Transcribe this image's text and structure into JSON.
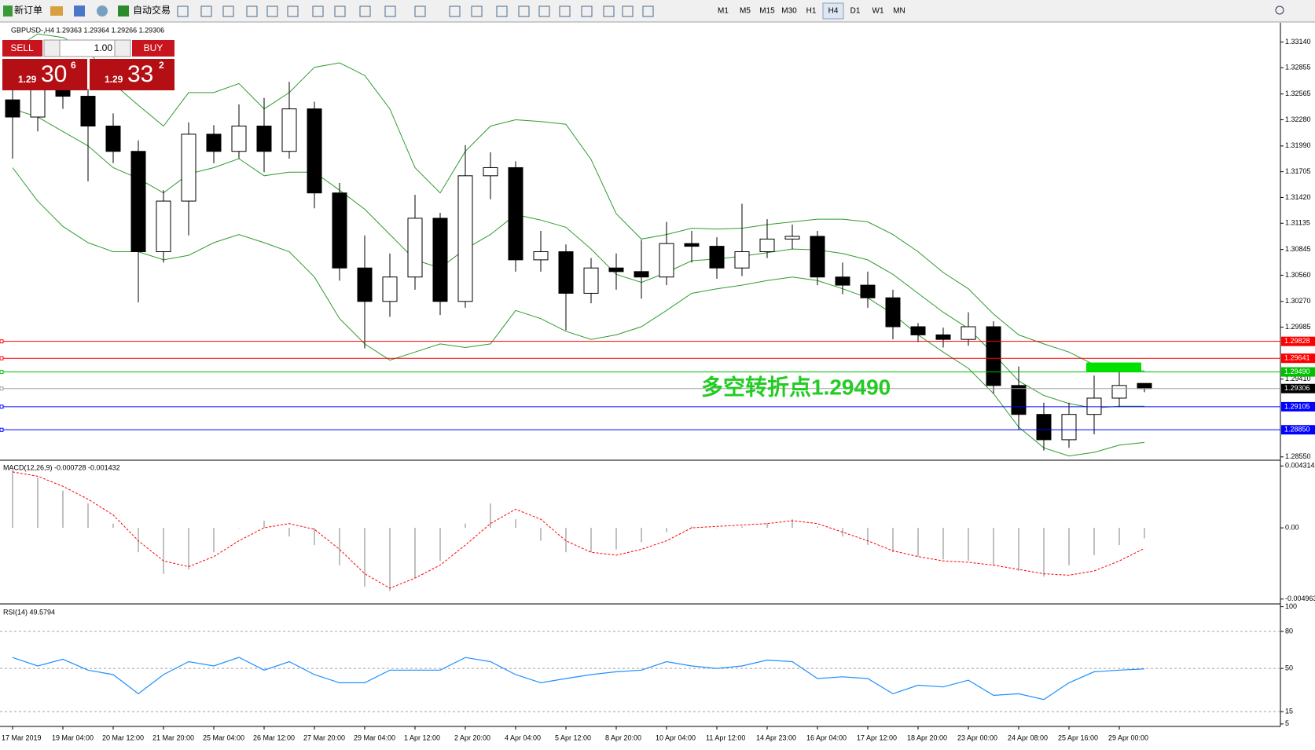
{
  "toolbar": {
    "buttons": [
      "新订单",
      "自动交易"
    ],
    "periods": [
      "M1",
      "M5",
      "M15",
      "M30",
      "H1",
      "H4",
      "D1",
      "W1",
      "MN"
    ],
    "active_period": 5
  },
  "trade": {
    "sell": "SELL",
    "buy": "BUY",
    "lots": "1.00",
    "bid": [
      "1.29",
      "30",
      "6"
    ],
    "ask": [
      "1.29",
      "33",
      "2"
    ]
  },
  "chart_data": [
    {
      "type": "candlestick",
      "title": "GBPUSD-,H4 1.29363 1.29364 1.29266 1.29306",
      "categories": [
        "17 Mar 2019",
        null,
        "19 Mar 04:00",
        null,
        "20 Mar 12:00",
        null,
        "21 Mar 20:00",
        null,
        "25 Mar 04:00",
        null,
        "26 Mar 12:00",
        null,
        "27 Mar 20:00",
        null,
        "29 Mar 04:00",
        null,
        "1 Apr 12:00",
        null,
        "2 Apr 20:00",
        null,
        "4 Apr 04:00",
        null,
        "5 Apr 12:00",
        null,
        "8 Apr 20:00",
        null,
        "10 Apr 04:00",
        null,
        "11 Apr 12:00",
        null,
        "14 Apr 23:00",
        null,
        "16 Apr 04:00",
        null,
        "17 Apr 12:00",
        null,
        "18 Apr 20:00",
        null,
        "23 Apr 00:00",
        null,
        "24 Apr 08:00",
        null,
        "25 Apr 16:00",
        null,
        "29 Apr 00:00",
        null
      ],
      "open": [
        1.325,
        1.3231,
        1.3268,
        1.3254,
        1.3221,
        1.3193,
        1.3082,
        1.3138,
        1.3212,
        1.3193,
        1.3221,
        1.3193,
        1.324,
        1.3147,
        1.3064,
        1.3027,
        1.3054,
        1.3119,
        1.3027,
        1.3166,
        1.3175,
        1.3073,
        1.3082,
        1.3036,
        1.3064,
        1.306,
        1.3054,
        1.3091,
        1.3088,
        1.3064,
        1.3082,
        1.3096,
        1.3099,
        1.3054,
        1.3045,
        1.3031,
        1.2999,
        1.299,
        1.2985,
        1.2999,
        1.2934,
        1.2902,
        1.2874,
        1.2902,
        1.292,
        1.29363
      ],
      "high": [
        1.3285,
        1.329,
        1.3278,
        1.3262,
        1.3235,
        1.3205,
        1.315,
        1.3225,
        1.3222,
        1.3245,
        1.3252,
        1.327,
        1.3248,
        1.3158,
        1.31,
        1.308,
        1.3145,
        1.3125,
        1.32,
        1.3192,
        1.3182,
        1.3105,
        1.309,
        1.3075,
        1.308,
        1.3095,
        1.3115,
        1.3105,
        1.3098,
        1.3135,
        1.3118,
        1.3112,
        1.3105,
        1.307,
        1.306,
        1.304,
        1.3003,
        1.2998,
        1.3015,
        1.3005,
        1.2955,
        1.2915,
        1.2915,
        1.2945,
        1.295,
        1.29364
      ],
      "low": [
        1.3185,
        1.3215,
        1.324,
        1.316,
        1.318,
        1.3026,
        1.307,
        1.31,
        1.318,
        1.3185,
        1.317,
        1.3185,
        1.313,
        1.305,
        1.2975,
        1.301,
        1.304,
        1.3012,
        1.302,
        1.314,
        1.306,
        1.306,
        1.2995,
        1.3025,
        1.304,
        1.303,
        1.3045,
        1.307,
        1.3052,
        1.3055,
        1.3075,
        1.3085,
        1.3045,
        1.3035,
        1.302,
        1.2985,
        1.2982,
        1.2976,
        1.2978,
        1.2925,
        1.2885,
        1.2862,
        1.2865,
        1.288,
        1.291,
        1.29266
      ],
      "close": [
        1.3231,
        1.3268,
        1.3254,
        1.3221,
        1.3193,
        1.3082,
        1.3138,
        1.3212,
        1.3193,
        1.3221,
        1.3193,
        1.324,
        1.3147,
        1.3064,
        1.3027,
        1.3054,
        1.3119,
        1.3027,
        1.3166,
        1.3175,
        1.3073,
        1.3082,
        1.3036,
        1.3064,
        1.306,
        1.3054,
        1.3091,
        1.3088,
        1.3064,
        1.3082,
        1.3096,
        1.3099,
        1.3054,
        1.3045,
        1.3031,
        1.2999,
        1.299,
        1.2985,
        1.2999,
        1.2934,
        1.2902,
        1.2874,
        1.2902,
        1.292,
        1.2934,
        1.29306
      ],
      "up_color": "#ffffff",
      "down_color": "#000000",
      "bands": {
        "color": "#2e9b2e",
        "upper": [
          1.3305,
          1.3323,
          1.3319,
          1.3305,
          1.3268,
          1.3244,
          1.3221,
          1.3258,
          1.3258,
          1.3268,
          1.324,
          1.3258,
          1.3286,
          1.3291,
          1.3277,
          1.324,
          1.3175,
          1.3147,
          1.3193,
          1.3221,
          1.3228,
          1.3226,
          1.3223,
          1.3184,
          1.3124,
          1.3096,
          1.3101,
          1.3108,
          1.3107,
          1.3108,
          1.3112,
          1.3115,
          1.3118,
          1.3118,
          1.3115,
          1.3101,
          1.3082,
          1.3059,
          1.3041,
          1.3013,
          1.299,
          1.298,
          1.2971,
          1.2957,
          1.2953,
          1.295
        ],
        "middle": [
          1.324,
          1.3231,
          1.3215,
          1.3199,
          1.3175,
          1.3163,
          1.3147,
          1.3168,
          1.3175,
          1.3185,
          1.3166,
          1.317,
          1.317,
          1.315,
          1.3129,
          1.3101,
          1.3073,
          1.3064,
          1.3085,
          1.3101,
          1.3123,
          1.3117,
          1.3109,
          1.3085,
          1.3057,
          1.3048,
          1.3059,
          1.3072,
          1.3074,
          1.3077,
          1.3081,
          1.3085,
          1.3084,
          1.308,
          1.3073,
          1.3057,
          1.3036,
          1.3015,
          1.2997,
          1.2969,
          1.2939,
          1.2923,
          1.2914,
          1.2909,
          1.2911,
          1.2911
        ],
        "lower": [
          1.3175,
          1.3138,
          1.311,
          1.3092,
          1.3082,
          1.3082,
          1.3073,
          1.3078,
          1.3092,
          1.3101,
          1.3092,
          1.3082,
          1.3054,
          1.3008,
          1.298,
          1.2962,
          1.2971,
          1.298,
          1.2976,
          1.298,
          1.3017,
          1.3008,
          1.2994,
          1.2985,
          1.299,
          1.2999,
          1.3017,
          1.3036,
          1.3041,
          1.3045,
          1.305,
          1.3054,
          1.305,
          1.3041,
          1.3031,
          1.3013,
          1.299,
          1.2971,
          1.2953,
          1.2925,
          1.2888,
          1.2865,
          1.2856,
          1.286,
          1.2868,
          1.2871
        ]
      },
      "ylim": [
        1.28522,
        1.33344
      ],
      "yticks": [
        {
          "value": 1.3314,
          "label": "1.33140"
        },
        1.32855,
        1.32565,
        {
          "value": 1.3228,
          "label": "1.32280"
        },
        {
          "value": 1.3199,
          "label": "1.31990"
        },
        1.31705,
        {
          "value": 1.3142,
          "label": "1.31420"
        },
        1.31135,
        1.30845,
        {
          "value": 1.3056,
          "label": "1.30560"
        },
        {
          "value": 1.3027,
          "label": "1.30270"
        },
        1.29985,
        {
          "value": 1.2941,
          "label": "1.29410"
        },
        {
          "value": 1.2855,
          "label": "1.28550"
        }
      ],
      "levels": [
        1.29828,
        1.29641,
        {
          "value": 1.2949,
          "label": "1.29490"
        },
        1.29306,
        1.29105,
        {
          "value": 1.2885,
          "label": "1.28850"
        }
      ],
      "level_colors": [
        "#ff0000",
        "#ff0000",
        "#00c000",
        "#a0a0a0",
        "#0000ff",
        "#0000ff"
      ],
      "level_label_colors": [
        "#ff0000",
        "#ff0000",
        "#00c000",
        "#000000",
        "#0000ff",
        "#0000ff"
      ],
      "zone_level": 2,
      "zone_color": "#00e000",
      "annotation": "多空转折点1.29490",
      "annotation_color": "#22cc22"
    },
    {
      "type": "macd",
      "title": "MACD(12,26,9) -0.000728 -0.001432",
      "color": "#c0c0c0",
      "values": [
        0.0041,
        0.0035,
        0.0026,
        0.0017,
        0.0003,
        -0.0017,
        -0.0032,
        -0.0029,
        -0.0017,
        0,
        0.0005,
        -0.0006,
        -0.0012,
        -0.0026,
        -0.0041,
        -0.0044,
        -0.0035,
        -0.0023,
        0.0003,
        0.0017,
        0.0006,
        -0.0009,
        -0.0017,
        -0.0017,
        -0.0015,
        -0.001,
        -0.0003,
        0.0001,
        0,
        0.0001,
        0.0003,
        0.0006,
        0.0001,
        -0.0006,
        -0.0012,
        -0.0017,
        -0.002,
        -0.0022,
        -0.0023,
        -0.0026,
        -0.003,
        -0.0034,
        -0.0026,
        -0.0019,
        -0.0012,
        -0.000728
      ],
      "signal": {
        "color": "#ff0000",
        "values": [
          0.0039,
          0.0036,
          0.0029,
          0.002,
          0.0009,
          -0.0009,
          -0.0023,
          -0.0027,
          -0.002,
          -0.0009,
          0,
          0.0003,
          -0.0001,
          -0.0015,
          -0.0032,
          -0.0042,
          -0.0035,
          -0.0026,
          -0.0012,
          0.0003,
          0.0013,
          0.0006,
          -0.0009,
          -0.0017,
          -0.0019,
          -0.0015,
          -0.0009,
          0,
          0.0001,
          0.0002,
          0.0003,
          0.0005,
          0.0003,
          -0.0003,
          -0.0009,
          -0.0016,
          -0.002,
          -0.0023,
          -0.0024,
          -0.0026,
          -0.0029,
          -0.0032,
          -0.0033,
          -0.003,
          -0.0023,
          -0.001432
        ]
      },
      "ylim": [
        -0.005247,
        0.004606
      ],
      "yticks": [
        0.004314,
        {
          "value": 0,
          "label": "0.00"
        },
        -0.004963
      ]
    },
    {
      "type": "line",
      "title": "RSI(14) 49.5794",
      "color": "#1e90ff",
      "values": [
        58.9,
        52,
        57.5,
        48.6,
        45,
        29.5,
        45,
        55.5,
        52,
        59,
        48.6,
        55.5,
        45,
        38.4,
        38.4,
        48.6,
        48.6,
        48.6,
        58.9,
        55.5,
        45,
        38.4,
        41.8,
        45,
        47.3,
        48.6,
        55.5,
        52,
        50,
        52,
        56.8,
        55.5,
        41.8,
        43.2,
        41.8,
        29.5,
        36.4,
        35,
        40.5,
        28.2,
        29.5,
        24.8,
        38.4,
        47.3,
        48.6,
        49.5794
      ],
      "ylim": [
        3,
        101
      ],
      "yticks": [
        100,
        80,
        50,
        15,
        5
      ]
    }
  ]
}
